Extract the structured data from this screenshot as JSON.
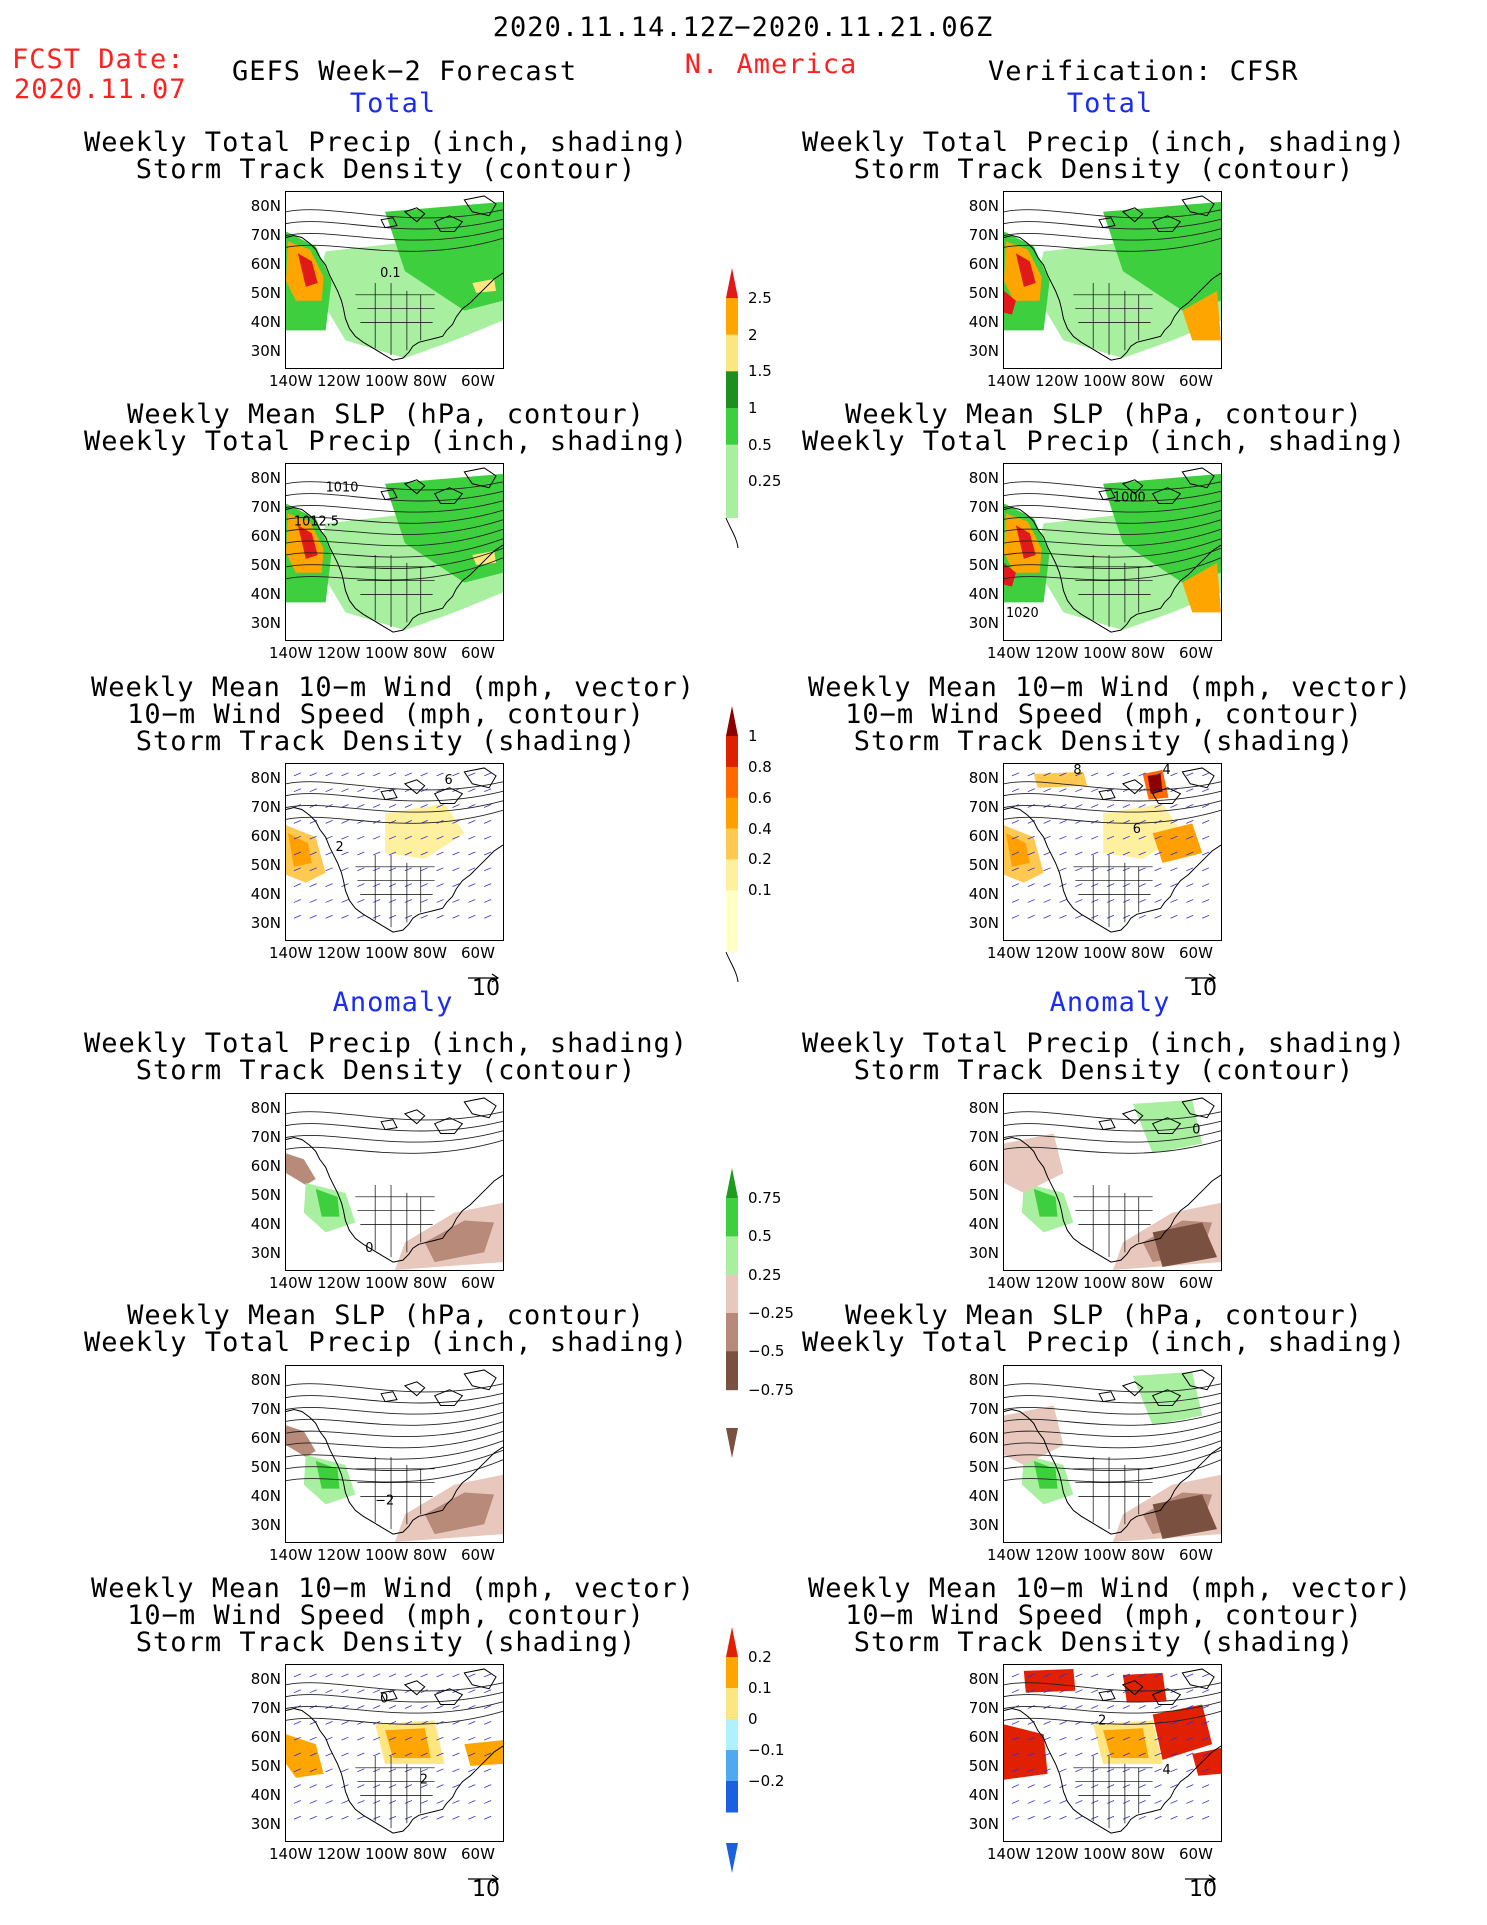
{
  "header": {
    "date_range": "2020.11.14.12Z−2020.11.21.06Z",
    "fcst_label": "FCST Date:",
    "fcst_date": "2020.11.07",
    "left_title": "GEFS Week−2 Forecast",
    "region": "N. America",
    "right_title": "Verification: CFSR"
  },
  "sections": {
    "total": "Total",
    "anomaly": "Anomaly"
  },
  "panel_titles": {
    "precip_track": [
      "Weekly Total Precip (inch, shading)",
      "Storm Track Density (contour)"
    ],
    "slp_precip": [
      "Weekly Mean SLP (hPa, contour)",
      "Weekly Total Precip (inch, shading)"
    ],
    "wind_track": [
      "Weekly Mean 10−m Wind (mph, vector)",
      "10−m Wind Speed (mph, contour)",
      "Storm Track Density (shading)"
    ]
  },
  "axes": {
    "lat_ticks": [
      "80N",
      "70N",
      "60N",
      "50N",
      "40N",
      "30N"
    ],
    "lon_ticks": [
      "140W",
      "120W",
      "100W",
      "80W",
      "60W"
    ],
    "vector_ref": "10"
  },
  "contour_labels": {
    "f_total_track": "0.1",
    "f_total_slp_a": "1010",
    "f_total_slp_b": "1012.5",
    "v_total_slp_a": "1000",
    "v_total_slp_b": "1020",
    "f_total_wind_a": "6",
    "f_total_wind_b": "2",
    "v_total_wind_a": "8",
    "v_total_wind_b": "4",
    "v_total_wind_c": "6",
    "f_anom_track": "0",
    "v_anom_track": "0",
    "f_anom_slp": "−2",
    "f_anom_wind_a": "0",
    "f_anom_wind_b": "2",
    "v_anom_wind_a": "2",
    "v_anom_wind_b": "4"
  },
  "colorbars": {
    "precip_total": {
      "labels": [
        "2.5",
        "2",
        "1.5",
        "1",
        "0.5",
        "0.25"
      ],
      "colors": [
        "#e01a1a",
        "#ffa500",
        "#fde680",
        "#1e8f1e",
        "#3ecf3e",
        "#a8f0a0"
      ]
    },
    "track_total": {
      "labels": [
        "1",
        "0.8",
        "0.6",
        "0.4",
        "0.2",
        "0.1"
      ],
      "colors": [
        "#8b0000",
        "#dd2000",
        "#ff6a00",
        "#ffa000",
        "#ffc850",
        "#fff0a0",
        "#ffffc8"
      ]
    },
    "precip_anom": {
      "labels": [
        "0.75",
        "0.5",
        "0.25",
        "−0.25",
        "−0.5",
        "−0.75"
      ],
      "colors": [
        "#1e9a1e",
        "#3ecf3e",
        "#a8f0a0",
        "#e8c8bc",
        "#b88a7a",
        "#7a5040"
      ]
    },
    "track_anom": {
      "labels": [
        "0.2",
        "0.1",
        "0",
        "−0.1",
        "−0.2"
      ],
      "colors": [
        "#e02000",
        "#ffa500",
        "#fde680",
        "#b0f0ff",
        "#50a8f0",
        "#1a60e0"
      ]
    }
  }
}
